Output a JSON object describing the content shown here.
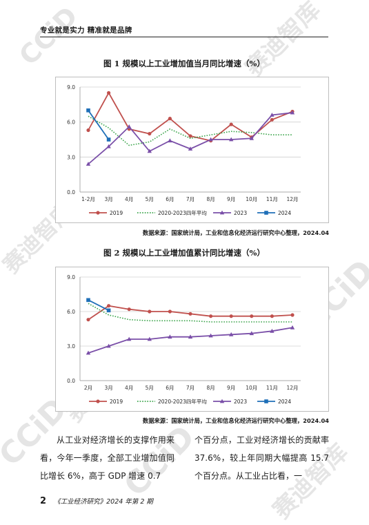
{
  "header": {
    "text": "专业就是实力  精准就是品牌"
  },
  "watermark": {
    "brand": "CCiD",
    "cn": "赛迪智库"
  },
  "figures": [
    {
      "title": "图 1  规模以上工业增加值当月同比增速（%）",
      "source": "数据来源：国家统计局，工业和信息化经济运行研究中心整理，2024.04"
    },
    {
      "title": "图 2  规模以上工业增加值累计同比增速（%）",
      "source": "数据来源：国家统计局，工业和信息化经济运行研究中心整理，2024.04"
    }
  ],
  "chart_data": [
    {
      "type": "line",
      "title": "图 1  规模以上工业增加值当月同比增速（%）",
      "categories": [
        "1-2月",
        "3月",
        "4月",
        "5月",
        "6月",
        "7月",
        "8月",
        "9月",
        "10月",
        "11月",
        "12月"
      ],
      "ylim": [
        0,
        9
      ],
      "yticks": [
        "0.0",
        "3.0",
        "6.0",
        "9.0"
      ],
      "legend_position": "bottom",
      "series": [
        {
          "name": "2019",
          "color": "#c0504d",
          "style": "solid-circle",
          "values": [
            5.3,
            8.5,
            5.4,
            5.0,
            6.3,
            4.8,
            4.4,
            5.8,
            4.7,
            6.2,
            6.9
          ]
        },
        {
          "name": "2020-2023四年平均",
          "color": "#3aa44a",
          "style": "dotted",
          "values": [
            6.5,
            5.5,
            4.0,
            4.3,
            5.4,
            4.6,
            4.9,
            5.2,
            5.1,
            4.9,
            4.9
          ]
        },
        {
          "name": "2023",
          "color": "#7a4fa8",
          "style": "solid-triangle",
          "values": [
            2.4,
            3.9,
            5.6,
            3.5,
            4.4,
            3.7,
            4.5,
            4.5,
            4.6,
            6.6,
            6.8
          ]
        },
        {
          "name": "2024",
          "color": "#1f6fb8",
          "style": "solid-square",
          "values": [
            7.0,
            4.5,
            null,
            null,
            null,
            null,
            null,
            null,
            null,
            null,
            null
          ]
        }
      ]
    },
    {
      "type": "line",
      "title": "图 2  规模以上工业增加值累计同比增速（%）",
      "categories": [
        "2月",
        "3月",
        "4月",
        "5月",
        "6月",
        "7月",
        "8月",
        "9月",
        "10月",
        "11月",
        "12月"
      ],
      "ylim": [
        0,
        9
      ],
      "yticks": [
        "0.0",
        "3.0",
        "6.0",
        "9.0"
      ],
      "legend_position": "bottom",
      "series": [
        {
          "name": "2019",
          "color": "#c0504d",
          "style": "solid-circle",
          "values": [
            5.3,
            6.5,
            6.2,
            6.0,
            6.0,
            5.8,
            5.6,
            5.6,
            5.6,
            5.6,
            5.7
          ]
        },
        {
          "name": "2020-2023四年平均",
          "color": "#3aa44a",
          "style": "dotted",
          "values": [
            6.7,
            5.7,
            5.3,
            5.2,
            5.2,
            5.2,
            5.1,
            5.1,
            5.1,
            5.1,
            5.1
          ]
        },
        {
          "name": "2023",
          "color": "#7a4fa8",
          "style": "solid-triangle",
          "values": [
            2.4,
            3.0,
            3.6,
            3.6,
            3.8,
            3.8,
            3.9,
            4.0,
            4.1,
            4.3,
            4.6
          ]
        },
        {
          "name": "2024",
          "color": "#1f6fb8",
          "style": "solid-square",
          "values": [
            7.0,
            6.1,
            null,
            null,
            null,
            null,
            null,
            null,
            null,
            null,
            null
          ]
        }
      ]
    }
  ],
  "body": {
    "left_paragraph": "从工业对经济增长的支撑作用来看，今年一季度，全部工业增加值同比增长 6%，高于 GDP 增速 0.7",
    "right_paragraph": "个百分点，工业对经济增长的贡献率 37.6%，较上年同期大幅提高 15.7 个百分点。从工业占比看，一"
  },
  "footer": {
    "page_number": "2",
    "journal": "《工业经济研究》2024 年第 2 期"
  }
}
